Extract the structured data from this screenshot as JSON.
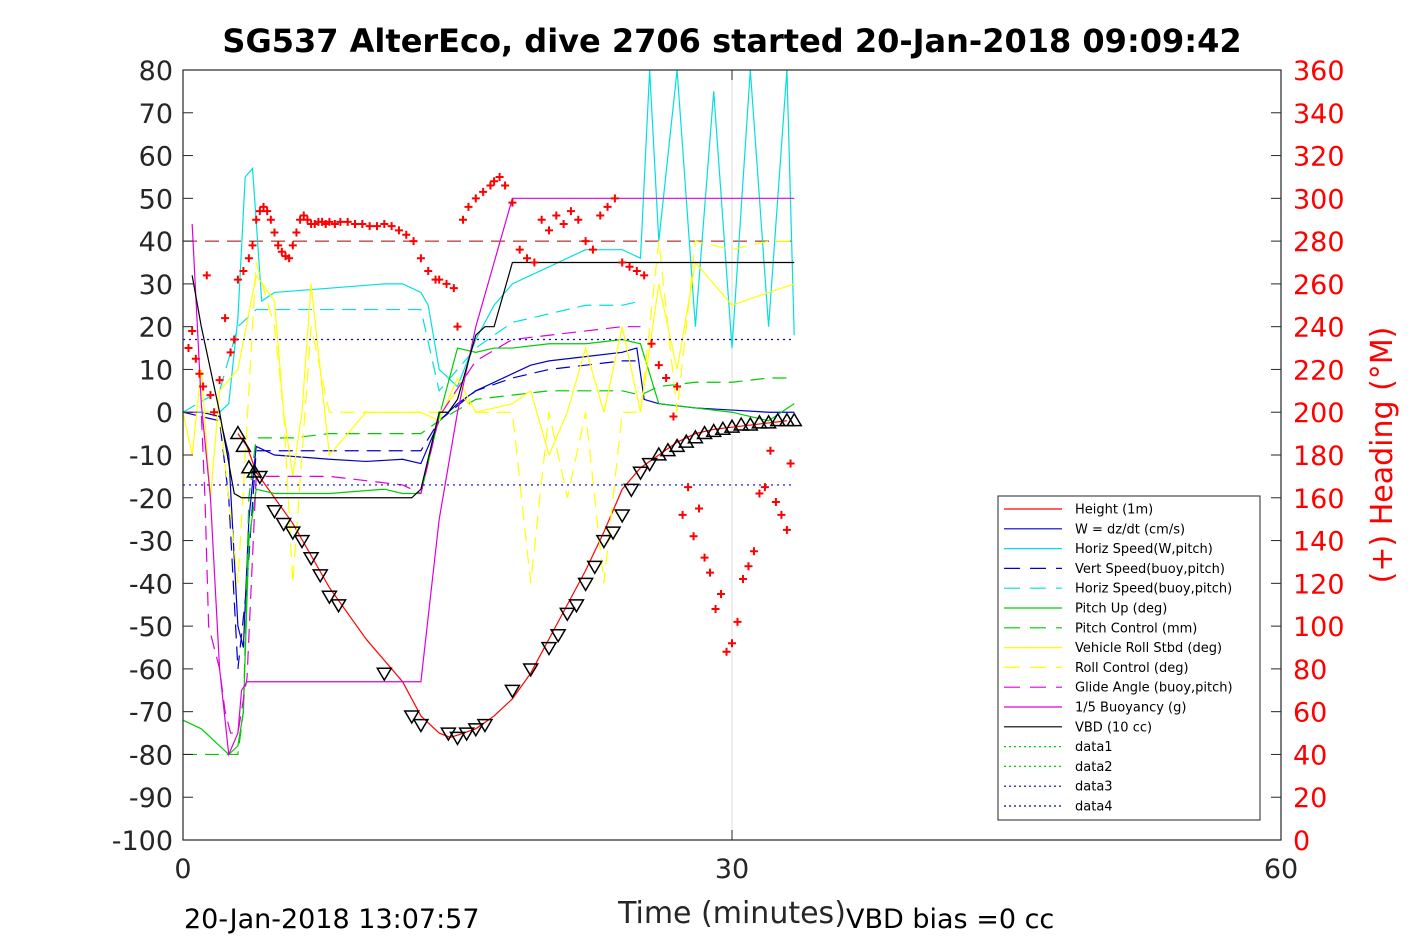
{
  "chart_data": {
    "type": "line",
    "title": "SG537 AlterEco, dive 2706 started 20-Jan-2018 09:09:42",
    "xlabel": "Time (minutes)",
    "ylabel": "",
    "y2label": "(+) Heading (°M)",
    "xlim": [
      0,
      60
    ],
    "ylim": [
      -100,
      80
    ],
    "y2lim": [
      0,
      360
    ],
    "x_ticks": [
      0,
      30,
      60
    ],
    "y_ticks": [
      80,
      70,
      60,
      50,
      40,
      30,
      20,
      10,
      0,
      -10,
      -20,
      -30,
      -40,
      -50,
      -60,
      -70,
      -80,
      -90,
      -100
    ],
    "y2_ticks": [
      360,
      340,
      320,
      300,
      280,
      260,
      240,
      220,
      200,
      180,
      160,
      140,
      120,
      100,
      80,
      60,
      40,
      20,
      0
    ],
    "grid": "x-only",
    "legend_position": "lower-right",
    "footer_left": "20-Jan-2018 13:07:57",
    "footer_right": "VBD bias =0 cc",
    "series": [
      {
        "name": "Height (1m)",
        "color": "#ff0000",
        "style": "solid",
        "x": [
          3.0,
          3.5,
          4.0,
          6.0,
          8.0,
          10.0,
          12.0,
          13.0,
          14.0,
          14.6,
          15.0,
          16.0,
          17.0,
          18.0,
          19.0,
          20.0,
          21.0,
          22.0,
          23.0,
          24.0,
          25.0,
          26.0,
          27.0,
          28.0,
          29.0,
          30.0,
          31.0,
          32.0,
          33.0
        ],
        "y": [
          -5,
          -8,
          -14,
          -26,
          -41,
          -53,
          -63,
          -71,
          -75,
          -76,
          -75.5,
          -74,
          -71,
          -67,
          -61,
          -53,
          -45,
          -37,
          -28,
          -18,
          -13,
          -10,
          -7,
          -5,
          -4,
          -3.5,
          -3,
          -2.5,
          -2
        ]
      },
      {
        "name": "W = dz/dt (cm/s)",
        "color": "#0000cc",
        "style": "solid",
        "x": [
          0,
          1,
          2,
          2.5,
          3,
          3.3,
          3.6,
          4,
          5,
          8,
          10,
          12,
          13,
          14,
          15,
          16,
          17,
          18,
          19,
          20,
          22,
          24,
          24.8,
          25.2,
          26,
          28,
          30,
          32,
          33.4
        ],
        "y": [
          0,
          0,
          -1,
          -10,
          -50,
          -55,
          -25,
          -8,
          -10,
          -11,
          -11.5,
          -11,
          -12,
          -2,
          2,
          5,
          7,
          9,
          11,
          12,
          13,
          14,
          15,
          3,
          2,
          1,
          0.5,
          0,
          0
        ]
      },
      {
        "name": "Horiz Speed(W,pitch)",
        "color": "#00e0e0",
        "style": "solid",
        "x": [
          0,
          1,
          2,
          2.5,
          3,
          3.4,
          3.8,
          4.3,
          5,
          8,
          11,
          12,
          13,
          13.4,
          14,
          15,
          16,
          17,
          18,
          20,
          22,
          24,
          25,
          25.5,
          26,
          27,
          28,
          29,
          30,
          31,
          32,
          33,
          33.4
        ],
        "y": [
          0,
          0,
          0,
          2,
          22,
          55,
          57,
          26,
          28,
          29,
          30,
          30,
          28,
          25,
          10,
          6,
          17,
          25,
          30,
          34,
          38,
          38,
          36,
          80,
          40,
          80,
          20,
          75,
          15,
          80,
          20,
          80,
          18
        ]
      },
      {
        "name": "Vert Speed(buoy,pitch)",
        "color": "#0000cc",
        "style": "dashed",
        "x": [
          0,
          2,
          2.5,
          3,
          3.5,
          4,
          8,
          12,
          13,
          14,
          16,
          18,
          20,
          22,
          24,
          25
        ],
        "y": [
          0,
          -2,
          -20,
          -60,
          -40,
          -9,
          -9,
          -9,
          -9,
          -2,
          5,
          8,
          10,
          11,
          12,
          12
        ]
      },
      {
        "name": "Horiz Speed(buoy,pitch)",
        "color": "#00e0e0",
        "style": "dashed",
        "x": [
          0,
          2,
          3,
          4,
          8,
          12,
          13,
          14,
          16,
          18,
          20,
          22,
          24,
          25
        ],
        "y": [
          0,
          5,
          20,
          24,
          24,
          24,
          24,
          5,
          15,
          21,
          23,
          25,
          25,
          26
        ]
      },
      {
        "name": "Pitch Up (deg)",
        "color": "#00cc00",
        "style": "solid",
        "x": [
          0,
          1,
          1.5,
          2,
          2.5,
          3,
          3.3,
          3.6,
          4,
          5,
          8,
          11,
          12,
          13,
          14,
          15,
          16,
          17,
          18,
          20,
          22,
          24,
          25,
          26,
          28,
          30,
          32,
          33.4
        ],
        "y": [
          -72,
          -74,
          -76,
          -78,
          -80,
          -78,
          -70,
          -30,
          -18,
          -19,
          -19,
          -18,
          -19,
          -19,
          -1,
          15,
          14,
          15,
          15,
          16,
          16,
          17,
          16,
          2,
          1,
          0,
          -2,
          2
        ]
      },
      {
        "name": "Pitch Control (mm)",
        "color": "#00cc00",
        "style": "dashed",
        "x": [
          0,
          2,
          3,
          3.3,
          3.6,
          4,
          6,
          8,
          10,
          12,
          13,
          14,
          16,
          18,
          20,
          22,
          24,
          25,
          26,
          28,
          30,
          32,
          33.4
        ],
        "y": [
          -80,
          -80,
          -80,
          -70,
          -20,
          -6,
          -6,
          -5,
          -5,
          -5,
          -5,
          -2,
          3,
          4,
          5,
          5,
          5,
          4,
          6,
          7,
          7,
          8,
          8
        ]
      },
      {
        "name": "Vehicle Roll Stbd (deg)",
        "color": "#ffff00",
        "style": "solid",
        "x": [
          0,
          0.5,
          1,
          1.5,
          2,
          3,
          4,
          5,
          5.5,
          6,
          6.5,
          7,
          8,
          10,
          12,
          13,
          14,
          15,
          16,
          18,
          19,
          20,
          21,
          22,
          23,
          24,
          25,
          26,
          27,
          28,
          30,
          32,
          33.4
        ],
        "y": [
          0,
          -10,
          10,
          -20,
          5,
          10,
          32,
          26,
          0,
          -15,
          0,
          30,
          -10,
          0,
          0,
          0,
          -2,
          8,
          0,
          2,
          5,
          -10,
          0,
          15,
          0,
          20,
          0,
          30,
          10,
          35,
          25,
          28,
          30
        ]
      },
      {
        "name": "Roll Control (deg)",
        "color": "#ffff00",
        "style": "dashed",
        "x": [
          0,
          2,
          3,
          4,
          5,
          5.5,
          6,
          7,
          8,
          10,
          13,
          14,
          15,
          16,
          18,
          19,
          20,
          21,
          22,
          23,
          24,
          25,
          26,
          27,
          28,
          30,
          32,
          33.4
        ],
        "y": [
          0,
          0,
          -40,
          35,
          20,
          0,
          -40,
          20,
          0,
          0,
          0,
          0,
          5,
          0,
          0,
          -40,
          0,
          -20,
          0,
          -40,
          0,
          0,
          40,
          0,
          40,
          38,
          40,
          40
        ]
      },
      {
        "name": "Glide Angle (buoy,pitch)",
        "color": "#dd00dd",
        "style": "dashed",
        "x": [
          0,
          1,
          1.2,
          1.4,
          2,
          2.3,
          2.6,
          3,
          3.5,
          4,
          8,
          12,
          13,
          14,
          16,
          18,
          20,
          22,
          24,
          25
        ],
        "y": [
          0,
          0,
          -20,
          -50,
          -60,
          -70,
          -75,
          -75,
          -62,
          -15,
          -15,
          -17,
          -19,
          -1,
          12,
          17,
          18,
          19,
          20,
          20
        ]
      },
      {
        "name": "1/5 Buoyancy (g)",
        "color": "#dd00dd",
        "style": "solid",
        "x": [
          0.5,
          1,
          1.5,
          2,
          2.5,
          3,
          3.2,
          3.5,
          4,
          8,
          10,
          12,
          13,
          14,
          15,
          16,
          17,
          18,
          20,
          22,
          24,
          26,
          28,
          30,
          32,
          33.4
        ],
        "y": [
          44,
          2,
          -20,
          -60,
          -80,
          -75,
          -65,
          -63,
          -63,
          -63,
          -63,
          -63,
          -63,
          -25,
          0,
          20,
          35,
          50,
          50,
          50,
          50,
          50,
          50,
          50,
          50,
          50
        ]
      },
      {
        "name": "VBD (10 cc)",
        "color": "#000000",
        "style": "solid",
        "x": [
          0.5,
          1,
          2,
          2.8,
          3.2,
          4,
          8,
          12,
          12.5,
          13,
          14,
          14.5,
          15,
          16,
          16.5,
          17,
          18,
          20,
          24,
          28,
          30,
          32,
          33.4
        ],
        "y": [
          32,
          20,
          0,
          -19,
          -20,
          -20,
          -20,
          -20,
          -20,
          -18,
          0,
          0,
          3,
          18,
          20,
          20,
          35,
          35,
          35,
          35,
          35,
          35,
          35
        ]
      },
      {
        "name": "data1",
        "color": "#00cc00",
        "style": "dotted",
        "x": [],
        "y": []
      },
      {
        "name": "data2",
        "color": "#00cc00",
        "style": "dotted",
        "x": [],
        "y": []
      },
      {
        "name": "data3",
        "color": "#0000cc",
        "style": "dotted",
        "x": [
          0,
          33.4
        ],
        "y": [
          17,
          17
        ]
      },
      {
        "name": "data4",
        "color": "#0000cc",
        "style": "dotted",
        "x": [
          0,
          33.4
        ],
        "y": [
          -17,
          -17
        ]
      }
    ],
    "reference_line": {
      "y": 40,
      "color": "#aa0000",
      "style": "dashed",
      "x": [
        0,
        33.4
      ]
    },
    "dive_markers": {
      "color": "#000000",
      "descent_x": [
        3.0,
        3.3,
        3.6,
        3.9,
        4.2,
        5.0,
        5.5,
        6.0,
        6.5,
        7.0,
        7.5,
        8.0,
        8.5,
        11.0,
        12.5,
        13.0
      ],
      "descent_y": [
        -5,
        -8,
        -13,
        -14,
        -15,
        -23,
        -26,
        -28,
        -30,
        -34,
        -38,
        -43,
        -45,
        -61,
        -71,
        -73
      ],
      "ascent_x": [
        14.5,
        15.0,
        15.5,
        16.0,
        16.5,
        18.0,
        19.0,
        20.0,
        20.5,
        21.0,
        21.5,
        22.0,
        22.5,
        23.0,
        23.5,
        24.0,
        24.5,
        25.0,
        25.5,
        26.0,
        26.5,
        27.0,
        27.5,
        28.0,
        28.5,
        29.0,
        29.5,
        30.0,
        30.5,
        31.0,
        31.5,
        32.0,
        32.5,
        33.0,
        33.4
      ],
      "ascent_y": [
        -75,
        -76,
        -75,
        -74,
        -73,
        -65,
        -60,
        -55,
        -52,
        -47,
        -45,
        -40,
        -36,
        -30,
        -28,
        -24,
        -18,
        -14,
        -12,
        -10,
        -9,
        -8,
        -7,
        -6,
        -5,
        -4.5,
        -4,
        -3.5,
        -3,
        -3,
        -2.5,
        -2.5,
        -2,
        -2,
        -2
      ]
    },
    "heading_points": {
      "color": "#ff0000",
      "marker": "+",
      "x": [
        0.3,
        0.5,
        0.7,
        0.9,
        1.1,
        1.3,
        1.5,
        1.7,
        2.0,
        2.3,
        2.6,
        2.8,
        3.0,
        3.3,
        3.6,
        3.8,
        4.0,
        4.2,
        4.4,
        4.6,
        4.8,
        5.0,
        5.2,
        5.4,
        5.6,
        5.8,
        6.0,
        6.2,
        6.4,
        6.6,
        6.8,
        7.0,
        7.2,
        7.4,
        7.6,
        7.8,
        8.0,
        8.3,
        8.6,
        9.0,
        9.4,
        9.8,
        10.2,
        10.6,
        11.0,
        11.4,
        11.8,
        12.2,
        12.6,
        13.0,
        13.4,
        13.8,
        14.0,
        14.4,
        14.8,
        15.0,
        15.3,
        15.6,
        16.0,
        16.4,
        16.8,
        17.0,
        17.3,
        17.6,
        18.0,
        18.4,
        18.8,
        19.2,
        19.6,
        20.0,
        20.4,
        20.8,
        21.2,
        21.6,
        22.0,
        22.4,
        22.8,
        23.2,
        23.6,
        24.0,
        24.4,
        24.8,
        25.2,
        25.6,
        26.0,
        26.4,
        26.8,
        27.0,
        27.3,
        27.6,
        27.9,
        28.2,
        28.5,
        28.8,
        29.1,
        29.4,
        29.7,
        30.0,
        30.3,
        30.6,
        30.9,
        31.2,
        31.5,
        31.8,
        32.1,
        32.4,
        32.7,
        33.0,
        33.2
      ],
      "y": [
        230,
        238,
        225,
        218,
        212,
        264,
        208,
        200,
        215,
        244,
        228,
        234,
        262,
        266,
        272,
        278,
        290,
        294,
        296,
        294,
        290,
        284,
        278,
        275,
        273,
        272,
        278,
        284,
        290,
        292,
        290,
        288,
        288,
        289,
        289,
        288,
        289,
        288,
        289,
        289,
        288,
        288,
        287,
        287,
        288,
        287,
        285,
        283,
        280,
        272,
        266,
        262,
        262,
        260,
        258,
        240,
        290,
        296,
        300,
        303,
        306,
        308,
        310,
        306,
        298,
        276,
        272,
        270,
        290,
        285,
        292,
        288,
        294,
        290,
        280,
        276,
        292,
        296,
        300,
        270,
        268,
        266,
        264,
        232,
        222,
        216,
        198,
        212,
        152,
        165,
        142,
        155,
        132,
        125,
        108,
        115,
        88,
        92,
        102,
        122,
        128,
        135,
        162,
        165,
        182,
        158,
        152,
        145,
        176
      ]
    }
  }
}
